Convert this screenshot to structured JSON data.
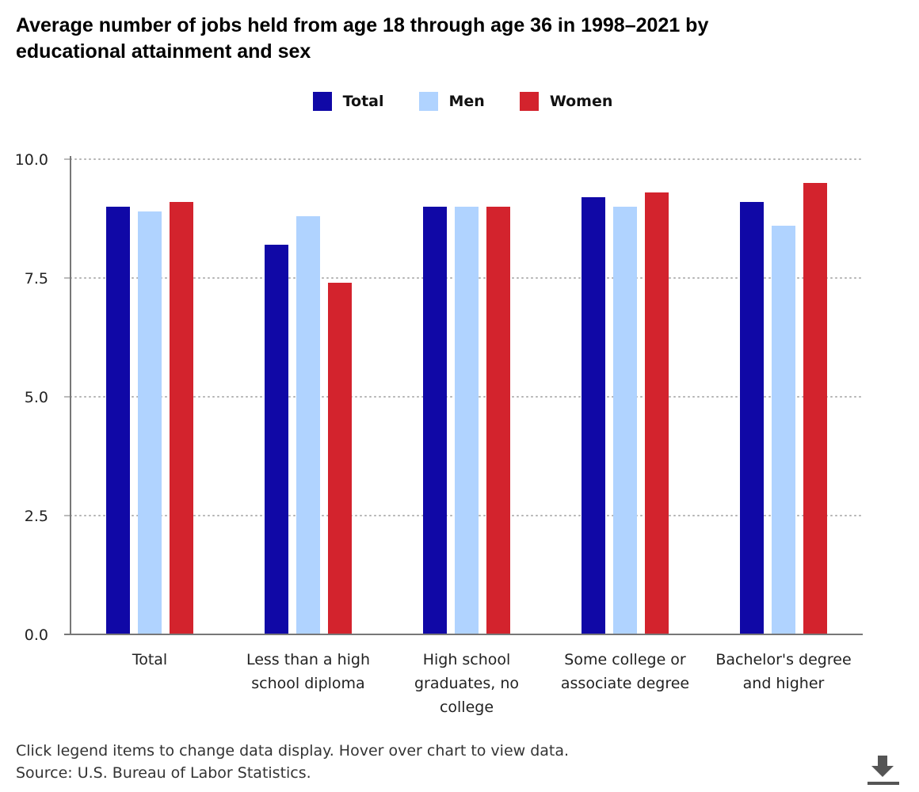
{
  "title": "Average number of jobs held from age 18 through age 36 in 1998–2021 by educational attainment and sex",
  "legend": [
    {
      "label": "Total",
      "color": "#1008a6"
    },
    {
      "label": "Men",
      "color": "#b0d3ff"
    },
    {
      "label": "Women",
      "color": "#d3232d"
    }
  ],
  "footer": {
    "instructions": "Click legend items to change data display. Hover over chart to view data.",
    "source": "Source: U.S. Bureau of Labor Statistics."
  },
  "download_icon": "download-icon",
  "chart_data": {
    "type": "bar",
    "categories": [
      [
        "Total"
      ],
      [
        "Less than a high",
        "school diploma"
      ],
      [
        "High school",
        "graduates, no",
        "college"
      ],
      [
        "Some college or",
        "associate degree"
      ],
      [
        "Bachelor's degree",
        "and higher"
      ]
    ],
    "series": [
      {
        "name": "Total",
        "values": [
          9.0,
          8.2,
          9.0,
          9.2,
          9.1
        ]
      },
      {
        "name": "Men",
        "values": [
          8.9,
          8.8,
          9.0,
          9.0,
          8.6
        ]
      },
      {
        "name": "Women",
        "values": [
          9.1,
          7.4,
          9.0,
          9.3,
          9.5
        ]
      }
    ],
    "ylim": [
      0,
      10
    ],
    "yticks": [
      "0.0",
      "2.5",
      "5.0",
      "7.5",
      "10.0"
    ],
    "ytick_values": [
      0,
      2.5,
      5,
      7.5,
      10
    ],
    "grid": true,
    "legend_position": "top-center",
    "xlabel": "",
    "ylabel": ""
  }
}
